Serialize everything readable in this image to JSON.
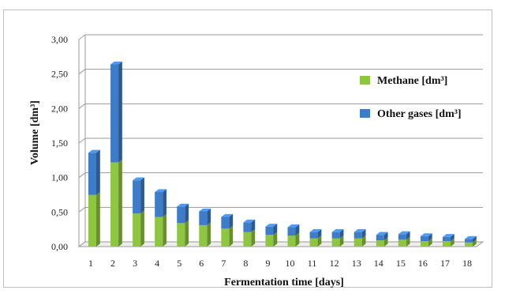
{
  "chart_data": {
    "type": "bar",
    "stacked": true,
    "categories": [
      "1",
      "2",
      "3",
      "4",
      "5",
      "6",
      "7",
      "8",
      "9",
      "10",
      "11",
      "12",
      "13",
      "14",
      "15",
      "16",
      "17",
      "18"
    ],
    "series": [
      {
        "name": "Methane [dm³]",
        "color": "#8fc63f",
        "values": [
          0.75,
          1.22,
          0.48,
          0.43,
          0.34,
          0.31,
          0.26,
          0.21,
          0.17,
          0.16,
          0.12,
          0.12,
          0.12,
          0.09,
          0.1,
          0.08,
          0.08,
          0.06
        ]
      },
      {
        "name": "Other gases [dm³]",
        "color": "#3d7cc9",
        "values": [
          0.61,
          1.42,
          0.48,
          0.36,
          0.24,
          0.2,
          0.17,
          0.14,
          0.12,
          0.12,
          0.09,
          0.09,
          0.09,
          0.08,
          0.08,
          0.07,
          0.06,
          0.05
        ]
      }
    ],
    "y_ticks": [
      "0,00",
      "0,50",
      "1,00",
      "1,50",
      "2,00",
      "2,50",
      "3,00"
    ],
    "ylim": [
      0,
      3
    ],
    "xlabel": "Fermentation time [days]",
    "ylabel": "Volume [dm³]",
    "grid": true,
    "legend_position": "right"
  }
}
